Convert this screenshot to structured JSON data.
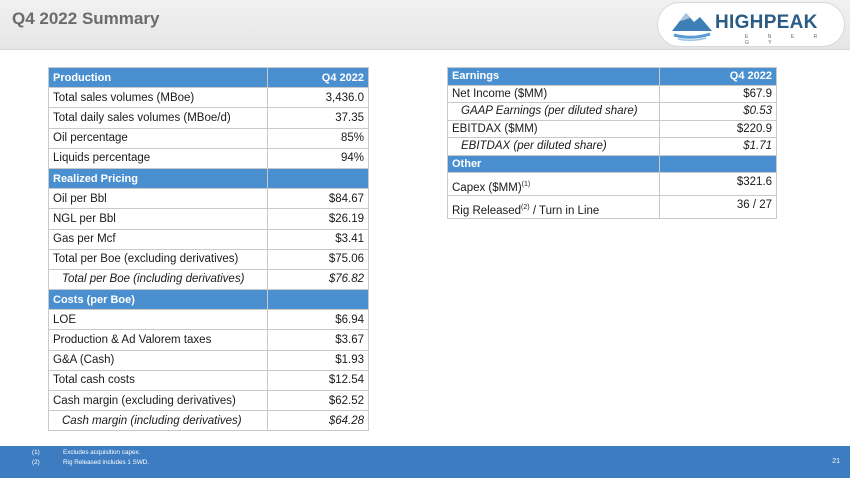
{
  "page_title": "Q4 2022 Summary",
  "logo": {
    "name": "HIGHPEAK",
    "tagline": "E N E R G Y"
  },
  "left_table": {
    "rows": [
      {
        "type": "header",
        "label": "Production",
        "value": "Q4 2022"
      },
      {
        "type": "row",
        "label": "Total sales volumes (MBoe)",
        "value": "3,436.0"
      },
      {
        "type": "row",
        "label": "Total daily sales volumes (MBoe/d)",
        "value": "37.35"
      },
      {
        "type": "row",
        "label": "Oil percentage",
        "value": "85%"
      },
      {
        "type": "row",
        "label": "Liquids percentage",
        "value": "94%"
      },
      {
        "type": "header",
        "label": "Realized Pricing",
        "value": ""
      },
      {
        "type": "row",
        "label": "Oil per Bbl",
        "value": "$84.67"
      },
      {
        "type": "row",
        "label": "NGL per Bbl",
        "value": "$26.19"
      },
      {
        "type": "row",
        "label": "Gas per Mcf",
        "value": "$3.41"
      },
      {
        "type": "row",
        "label": "Total per Boe (excluding derivatives)",
        "value": "$75.06"
      },
      {
        "type": "sub",
        "label": "Total per Boe (including derivatives)",
        "value": "$76.82"
      },
      {
        "type": "header",
        "label": "Costs (per Boe)",
        "value": ""
      },
      {
        "type": "row",
        "label": "LOE",
        "value": "$6.94"
      },
      {
        "type": "row",
        "label": "Production & Ad Valorem taxes",
        "value": "$3.67"
      },
      {
        "type": "row",
        "label": "G&A (Cash)",
        "value": "$1.93"
      },
      {
        "type": "row",
        "label": "Total cash costs",
        "value": "$12.54"
      },
      {
        "type": "row",
        "label": "Cash margin (excluding derivatives)",
        "value": "$62.52"
      },
      {
        "type": "sub",
        "label": "Cash margin (including derivatives)",
        "value": "$64.28"
      }
    ]
  },
  "right_table": {
    "earnings_header": "Earnings",
    "period_header": "Q4 2022",
    "net_income_label": "Net Income ($MM)",
    "net_income_value": "$67.9",
    "gaap_label": "GAAP Earnings (per diluted share)",
    "gaap_value": "$0.53",
    "ebitdax_label": "EBITDAX ($MM)",
    "ebitdax_value": "$220.9",
    "ebitdax_share_label": "EBITDAX (per diluted share)",
    "ebitdax_share_value": "$1.71",
    "other_header": "Other",
    "capex_label": "Capex ($MM)",
    "capex_sup": "(1)",
    "capex_value": "$321.6",
    "rig_label_a": "Rig Released",
    "rig_sup": "(2)",
    "rig_label_b": "/ Turn in Line",
    "rig_value": "36 / 27"
  },
  "footnotes": [
    {
      "num": "(1)",
      "text": "Excludes acquisition capex."
    },
    {
      "num": "(2)",
      "text": "Rig Released includes 1 SWD."
    }
  ],
  "page_number": "21",
  "colors": {
    "header_blue": "#4a8fcf",
    "footer_blue": "#3d7cc1",
    "title_gray": "#6b6b6b",
    "logo_blue": "#2a5c86"
  }
}
